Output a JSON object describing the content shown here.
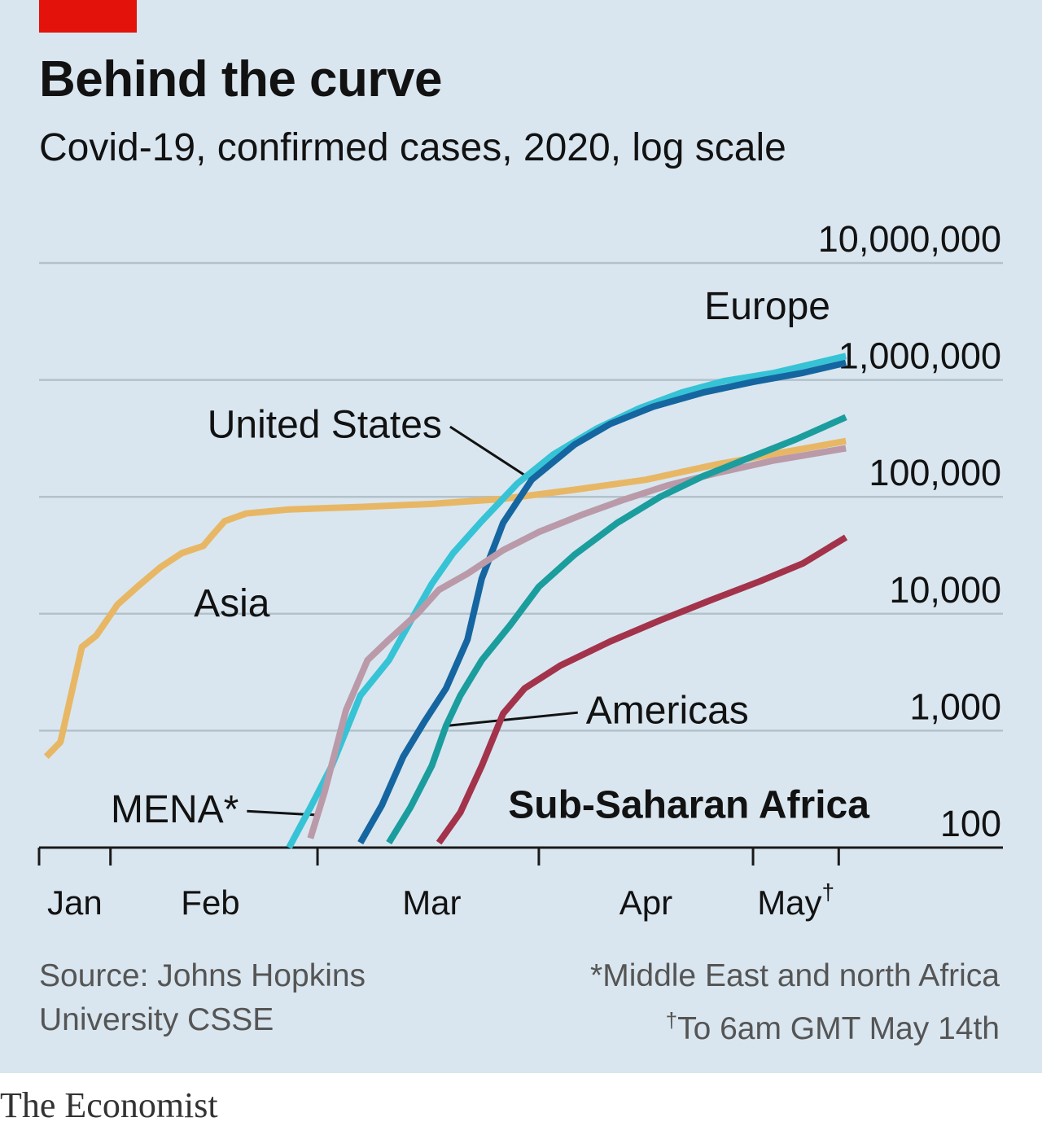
{
  "header": {
    "title": "Behind the curve",
    "subtitle": "Covid-19, confirmed cases, 2020, log scale"
  },
  "chart_data": {
    "type": "line",
    "title": "Behind the curve",
    "subtitle": "Covid-19, confirmed cases, 2020, log scale",
    "y_scale": "log",
    "ylim": [
      100,
      10000000
    ],
    "y_ticks": [
      {
        "value": 10000000,
        "label": "10,000,000"
      },
      {
        "value": 1000000,
        "label": "1,000,000"
      },
      {
        "value": 100000,
        "label": "100,000"
      },
      {
        "value": 10000,
        "label": "10,000"
      },
      {
        "value": 1000,
        "label": "1,000"
      },
      {
        "value": 100,
        "label": "100"
      }
    ],
    "xlim": [
      0,
      135
    ],
    "x_ticks": [
      0,
      10,
      39,
      70,
      100,
      112
    ],
    "x_labels": [
      {
        "label": "Jan",
        "day": 5
      },
      {
        "label": "Feb",
        "day": 24
      },
      {
        "label": "Mar",
        "day": 55
      },
      {
        "label": "Apr",
        "day": 85
      },
      {
        "label": "May",
        "sup": "†",
        "day": 106
      }
    ],
    "x_unit": "days since January 1st 2020 (approx.)",
    "grid": true,
    "series": [
      {
        "name": "Asia",
        "color": "#e8b765",
        "label": {
          "text": "Asia",
          "bold": false,
          "day": 27,
          "value": 9500,
          "anchor": "middle"
        },
        "points": [
          [
            1,
            600
          ],
          [
            3,
            800
          ],
          [
            6,
            5200
          ],
          [
            8,
            6500
          ],
          [
            11,
            12000
          ],
          [
            14,
            17500
          ],
          [
            17,
            25000
          ],
          [
            20,
            33000
          ],
          [
            23,
            38000
          ],
          [
            24,
            45000
          ],
          [
            26,
            62000
          ],
          [
            29,
            72000
          ],
          [
            35,
            78000
          ],
          [
            45,
            82000
          ],
          [
            55,
            87000
          ],
          [
            65,
            96000
          ],
          [
            75,
            115000
          ],
          [
            85,
            140000
          ],
          [
            95,
            190000
          ],
          [
            105,
            245000
          ],
          [
            113,
            300000
          ]
        ]
      },
      {
        "name": "Europe",
        "color": "#36c3d6",
        "label": {
          "text": "Europe",
          "bold": false,
          "day": 102,
          "value": 3300000,
          "anchor": "middle"
        },
        "points": [
          [
            35,
            100
          ],
          [
            38,
            220
          ],
          [
            41,
            500
          ],
          [
            45,
            2000
          ],
          [
            49,
            4000
          ],
          [
            53,
            11000
          ],
          [
            55,
            18000
          ],
          [
            58,
            33000
          ],
          [
            62,
            62000
          ],
          [
            67,
            130000
          ],
          [
            72,
            230000
          ],
          [
            78,
            380000
          ],
          [
            84,
            570000
          ],
          [
            90,
            780000
          ],
          [
            96,
            980000
          ],
          [
            103,
            1150000
          ],
          [
            113,
            1600000
          ]
        ]
      },
      {
        "name": "United States",
        "color": "#1566a0",
        "label": {
          "text": "United States",
          "bold": false,
          "day": 40,
          "value": 320000,
          "anchor": "middle"
        },
        "points": [
          [
            45,
            110
          ],
          [
            48,
            230
          ],
          [
            51,
            600
          ],
          [
            54,
            1200
          ],
          [
            57,
            2300
          ],
          [
            60,
            6000
          ],
          [
            62,
            20000
          ],
          [
            65,
            60000
          ],
          [
            69,
            140000
          ],
          [
            75,
            280000
          ],
          [
            80,
            420000
          ],
          [
            86,
            590000
          ],
          [
            93,
            780000
          ],
          [
            100,
            960000
          ],
          [
            107,
            1150000
          ],
          [
            113,
            1400000
          ]
        ]
      },
      {
        "name": "MENA*",
        "color": "#ba9aa8",
        "label": {
          "text": "MENA*",
          "bold": false,
          "day": 19,
          "value": 165,
          "anchor": "middle"
        },
        "points": [
          [
            38,
            120
          ],
          [
            40,
            300
          ],
          [
            43,
            1500
          ],
          [
            46,
            4000
          ],
          [
            49,
            6000
          ],
          [
            53,
            10000
          ],
          [
            56,
            16000
          ],
          [
            60,
            22000
          ],
          [
            65,
            35000
          ],
          [
            70,
            50000
          ],
          [
            76,
            70000
          ],
          [
            82,
            95000
          ],
          [
            88,
            125000
          ],
          [
            95,
            160000
          ],
          [
            103,
            205000
          ],
          [
            113,
            260000
          ]
        ]
      },
      {
        "name": "Americas",
        "color": "#1b9d9e",
        "label": {
          "text": "Americas",
          "bold": false,
          "day": 88,
          "value": 1150,
          "anchor": "middle"
        },
        "points": [
          [
            49,
            110
          ],
          [
            52,
            220
          ],
          [
            55,
            500
          ],
          [
            57,
            1100
          ],
          [
            59,
            2000
          ],
          [
            62,
            4000
          ],
          [
            66,
            8000
          ],
          [
            70,
            17000
          ],
          [
            75,
            32000
          ],
          [
            81,
            60000
          ],
          [
            87,
            100000
          ],
          [
            93,
            150000
          ],
          [
            99,
            210000
          ],
          [
            106,
            310000
          ],
          [
            113,
            480000
          ]
        ]
      },
      {
        "name": "Sub-Saharan Africa",
        "color": "#a3334b",
        "label": {
          "text": "Sub-Saharan Africa",
          "bold": true,
          "day": 91,
          "value": 180,
          "anchor": "middle"
        },
        "points": [
          [
            56,
            110
          ],
          [
            59,
            200
          ],
          [
            62,
            500
          ],
          [
            65,
            1400
          ],
          [
            68,
            2300
          ],
          [
            73,
            3600
          ],
          [
            80,
            5800
          ],
          [
            87,
            8800
          ],
          [
            94,
            13000
          ],
          [
            101,
            19000
          ],
          [
            107,
            27000
          ],
          [
            113,
            45000
          ]
        ]
      }
    ]
  },
  "footer": {
    "source_line1": "Source: Johns Hopkins",
    "source_line2": "University CSSE",
    "note1": "*Middle East and north Africa",
    "note2_mark": "†",
    "note2": "To 6am GMT May 14th",
    "brand": "The Economist"
  }
}
